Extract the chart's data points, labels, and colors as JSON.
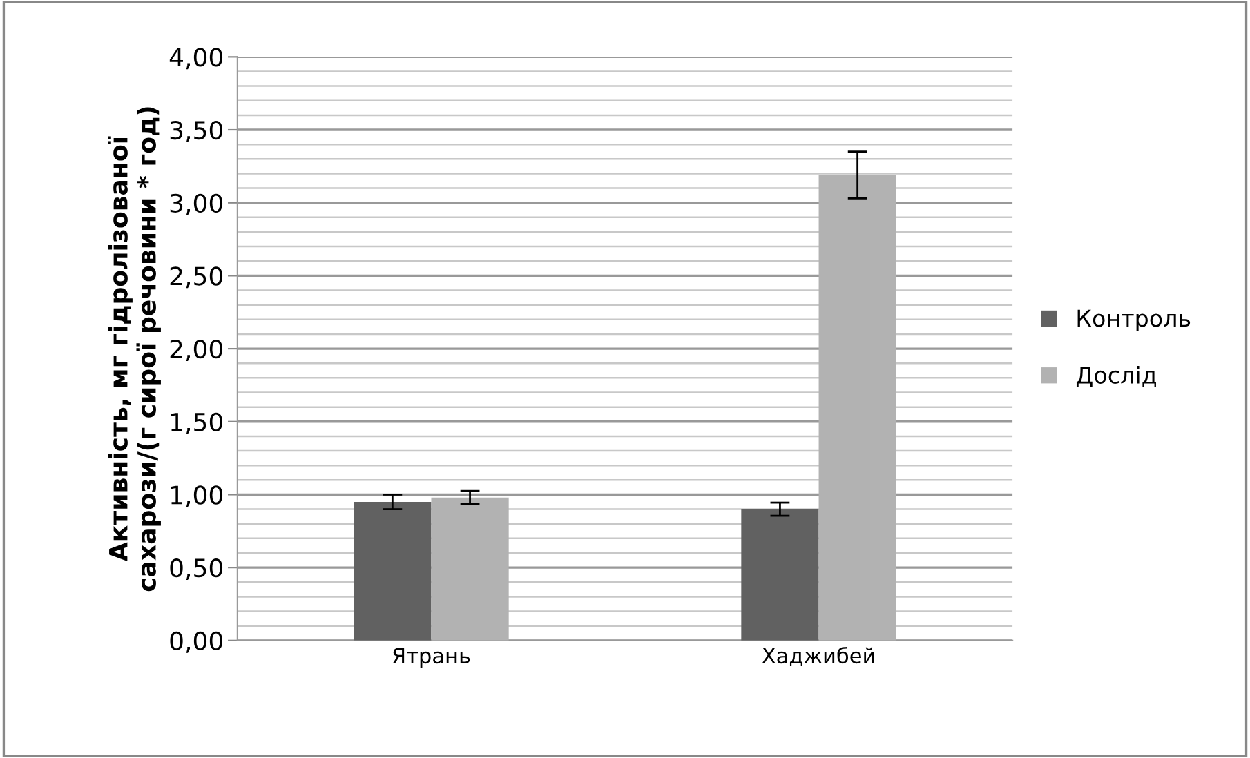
{
  "chart_data": {
    "type": "bar",
    "ylabel": "Активність, мг гідролізованої\nсахарози/(г сирої речовини * год)",
    "categories": [
      "Ятрань",
      "Хаджибей"
    ],
    "series": [
      {
        "name": "Контроль",
        "color": "#616161",
        "values": [
          0.95,
          0.9
        ],
        "errors": [
          0.05,
          0.045
        ]
      },
      {
        "name": "Дослід",
        "color": "#b2b2b2",
        "values": [
          0.98,
          3.19
        ],
        "errors": [
          0.045,
          0.16
        ]
      }
    ],
    "ylim": [
      0,
      4
    ],
    "yticks": [
      {
        "value": 0,
        "label": "0,00"
      },
      {
        "value": 0.1,
        "label": null
      },
      {
        "value": 0.2,
        "label": null
      },
      {
        "value": 0.3,
        "label": null
      },
      {
        "value": 0.4,
        "label": null
      },
      {
        "value": 0.5,
        "label": "0,50"
      },
      {
        "value": 0.6,
        "label": null
      },
      {
        "value": 0.7,
        "label": null
      },
      {
        "value": 0.8,
        "label": null
      },
      {
        "value": 0.9,
        "label": null
      },
      {
        "value": 1,
        "label": "1,00"
      },
      {
        "value": 1.1,
        "label": null
      },
      {
        "value": 1.2,
        "label": null
      },
      {
        "value": 1.3,
        "label": null
      },
      {
        "value": 1.4,
        "label": null
      },
      {
        "value": 1.5,
        "label": "1,50"
      },
      {
        "value": 1.6,
        "label": null
      },
      {
        "value": 1.7,
        "label": null
      },
      {
        "value": 1.8,
        "label": null
      },
      {
        "value": 1.9,
        "label": null
      },
      {
        "value": 2,
        "label": "2,00"
      },
      {
        "value": 2.1,
        "label": null
      },
      {
        "value": 2.2,
        "label": null
      },
      {
        "value": 2.3,
        "label": null
      },
      {
        "value": 2.4,
        "label": null
      },
      {
        "value": 2.5,
        "label": "2,50"
      },
      {
        "value": 2.6,
        "label": null
      },
      {
        "value": 2.7,
        "label": null
      },
      {
        "value": 2.8,
        "label": null
      },
      {
        "value": 2.9,
        "label": null
      },
      {
        "value": 3,
        "label": "3,00"
      },
      {
        "value": 3.1,
        "label": null
      },
      {
        "value": 3.2,
        "label": null
      },
      {
        "value": 3.3,
        "label": null
      },
      {
        "value": 3.4,
        "label": null
      },
      {
        "value": 3.5,
        "label": "3,50"
      },
      {
        "value": 3.6,
        "label": null
      },
      {
        "value": 3.7,
        "label": null
      },
      {
        "value": 3.8,
        "label": null
      },
      {
        "value": 3.9,
        "label": null
      },
      {
        "value": 4,
        "label": "4,00"
      }
    ],
    "grid": "y",
    "legend": "right"
  }
}
